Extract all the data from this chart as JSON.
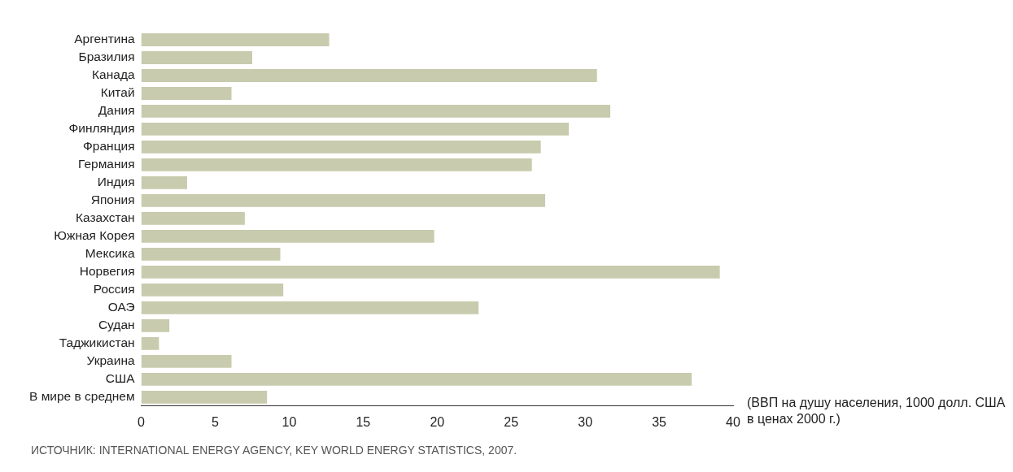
{
  "chart_data": {
    "type": "bar",
    "orientation": "horizontal",
    "categories": [
      "Аргентина",
      "Бразилия",
      "Канада",
      "Китай",
      "Дания",
      "Финляндия",
      "Франция",
      "Германия",
      "Индия",
      "Япония",
      "Казахстан",
      "Южная Корея",
      "Мексика",
      "Норвегия",
      "Россия",
      "ОАЭ",
      "Судан",
      "Таджикистан",
      "Украина",
      "США",
      "В мире в среднем"
    ],
    "values": [
      12.7,
      7.5,
      30.8,
      6.1,
      31.7,
      28.9,
      27.0,
      26.4,
      3.1,
      27.3,
      7.0,
      19.8,
      9.4,
      39.1,
      9.6,
      22.8,
      1.9,
      1.2,
      6.1,
      37.2,
      8.5
    ],
    "color": "#c8cbad",
    "xlim": [
      0,
      40
    ],
    "xticks": [
      0,
      5,
      10,
      15,
      20,
      25,
      30,
      35,
      40
    ],
    "xlabel": "(ВВП на душу населения, 1000 долл. США в ценах 2000 г.)",
    "grid": false,
    "legend": false,
    "annotations": [
      "ИСТОЧНИК: INTERNATIONAL ENERGY AGENCY, KEY WORLD ENERGY STATISTICS, 2007."
    ]
  }
}
